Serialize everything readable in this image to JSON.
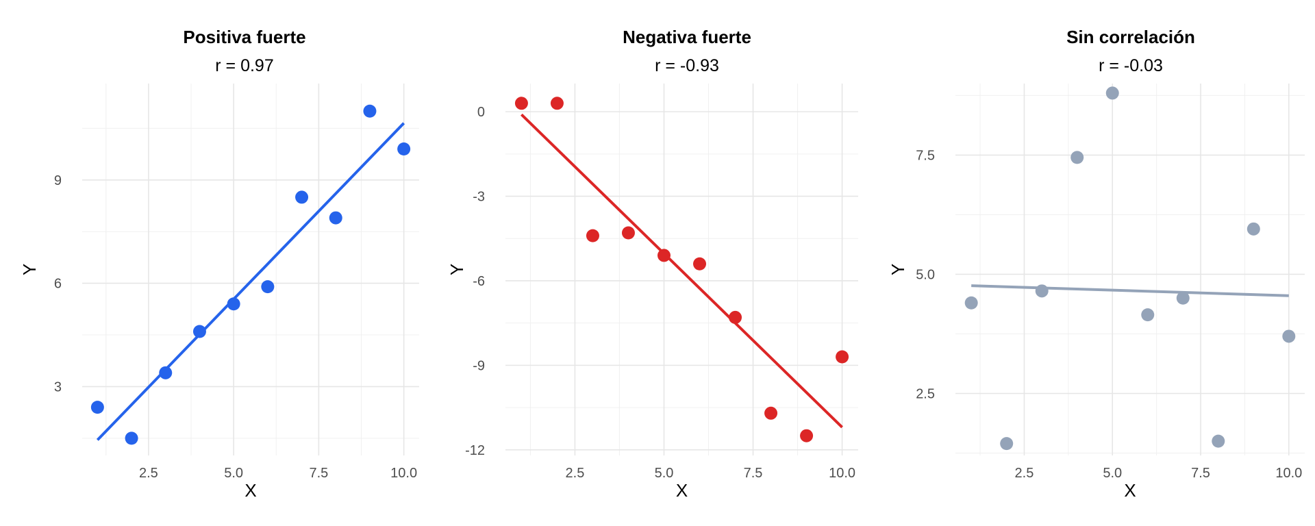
{
  "chart_data": [
    {
      "type": "scatter",
      "title": "Positiva fuerte",
      "subtitle": "r = 0.97",
      "xlabel": "X",
      "ylabel": "Y",
      "color": "#2563eb",
      "x": [
        1,
        2,
        3,
        4,
        5,
        6,
        7,
        8,
        9,
        10
      ],
      "y": [
        2.4,
        1.5,
        3.4,
        4.6,
        5.4,
        5.9,
        8.5,
        7.9,
        11.0,
        9.9
      ],
      "fit_line": {
        "x": [
          1,
          10
        ],
        "y": [
          1.45,
          10.65
        ]
      },
      "xlim": [
        0.55,
        10.45
      ],
      "ylim": [
        1.0,
        11.8
      ],
      "xticks": [
        2.5,
        5.0,
        7.5,
        10.0
      ],
      "xtick_labels": [
        "2.5",
        "5.0",
        "7.5",
        "10.0"
      ],
      "yticks": [
        3,
        6,
        9
      ],
      "ytick_labels": [
        "3",
        "6",
        "9"
      ],
      "grid": true
    },
    {
      "type": "scatter",
      "title": "Negativa fuerte",
      "subtitle": "r = -0.93",
      "xlabel": "X",
      "ylabel": "Y",
      "color": "#dc2626",
      "x": [
        1,
        2,
        3,
        4,
        5,
        6,
        7,
        8,
        9,
        10
      ],
      "y": [
        0.3,
        0.3,
        -4.4,
        -4.3,
        -5.1,
        -5.4,
        -7.3,
        -10.7,
        -11.5,
        -8.7
      ],
      "fit_line": {
        "x": [
          1,
          10
        ],
        "y": [
          -0.1,
          -11.2
        ]
      },
      "xlim": [
        0.55,
        10.45
      ],
      "ylim": [
        -12.2,
        1.0
      ],
      "xticks": [
        2.5,
        5.0,
        7.5,
        10.0
      ],
      "xtick_labels": [
        "2.5",
        "5.0",
        "7.5",
        "10.0"
      ],
      "yticks": [
        0,
        -3,
        -6,
        -9,
        -12
      ],
      "ytick_labels": [
        "0",
        "-3",
        "-6",
        "-9",
        "-12"
      ],
      "grid": true
    },
    {
      "type": "scatter",
      "title": "Sin correlación",
      "subtitle": "r = -0.03",
      "xlabel": "X",
      "ylabel": "Y",
      "color": "#94a3b8",
      "x": [
        1,
        2,
        3,
        4,
        5,
        6,
        7,
        8,
        9,
        10
      ],
      "y": [
        4.4,
        1.45,
        4.65,
        7.45,
        8.8,
        4.15,
        4.5,
        1.5,
        5.95,
        3.7
      ],
      "fit_line": {
        "x": [
          1,
          10
        ],
        "y": [
          4.76,
          4.55
        ]
      },
      "xlim": [
        0.55,
        10.45
      ],
      "ylim": [
        1.2,
        9.0
      ],
      "xticks": [
        2.5,
        5.0,
        7.5,
        10.0
      ],
      "xtick_labels": [
        "2.5",
        "5.0",
        "7.5",
        "10.0"
      ],
      "yticks": [
        2.5,
        5.0,
        7.5
      ],
      "ytick_labels": [
        "2.5",
        "5.0",
        "7.5"
      ],
      "grid": true
    }
  ]
}
